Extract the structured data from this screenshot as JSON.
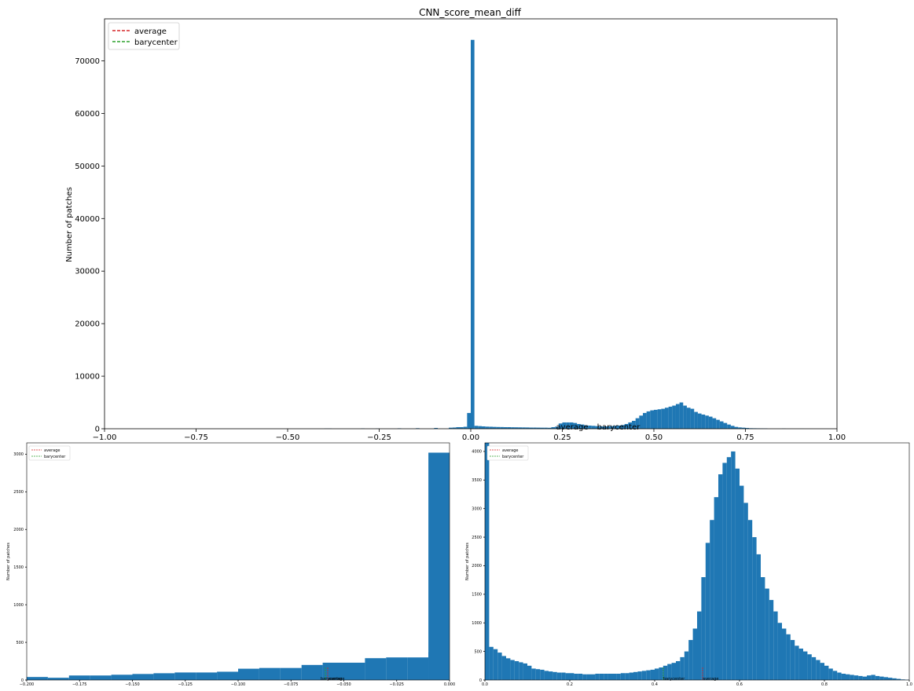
{
  "chart_data": [
    {
      "type": "bar",
      "title": "CNN_score_mean_diff",
      "ylabel": "Number of patches",
      "xlabel": "",
      "xlim": [
        -1.0,
        1.0
      ],
      "ylim": [
        0,
        78000
      ],
      "bin_width": 0.01,
      "bar_color": "#1f77b4",
      "grid": false,
      "legend_position": "top-left",
      "legend": [
        {
          "label": "average",
          "color": "#d62728",
          "style": "dashed"
        },
        {
          "label": "barycenter",
          "color": "#2ca02c",
          "style": "dashed"
        }
      ],
      "x_tick_labels": [
        "−1.00",
        "−0.75",
        "−0.50",
        "−0.25",
        "0.00",
        "0.25",
        "0.50",
        "0.75",
        "1.00"
      ],
      "y_tick_labels": [
        "0",
        "10000",
        "20000",
        "30000",
        "40000",
        "50000",
        "60000",
        "70000"
      ],
      "bins_left_edge": [
        -0.4,
        -0.39,
        -0.3,
        -0.26,
        -0.2,
        -0.15,
        -0.1,
        -0.06,
        -0.05,
        -0.04,
        -0.03,
        -0.02,
        -0.01,
        0.0,
        0.01,
        0.02,
        0.03,
        0.04,
        0.05,
        0.06,
        0.07,
        0.08,
        0.09,
        0.1,
        0.11,
        0.12,
        0.13,
        0.14,
        0.15,
        0.16,
        0.17,
        0.18,
        0.19,
        0.2,
        0.21,
        0.22,
        0.23,
        0.24,
        0.25,
        0.26,
        0.27,
        0.28,
        0.29,
        0.3,
        0.31,
        0.32,
        0.33,
        0.34,
        0.35,
        0.36,
        0.37,
        0.38,
        0.39,
        0.4,
        0.41,
        0.42,
        0.43,
        0.44,
        0.45,
        0.46,
        0.47,
        0.48,
        0.49,
        0.5,
        0.51,
        0.52,
        0.53,
        0.54,
        0.55,
        0.56,
        0.57,
        0.58,
        0.59,
        0.6,
        0.61,
        0.62,
        0.63,
        0.64,
        0.65,
        0.66,
        0.67,
        0.68,
        0.69,
        0.7,
        0.71,
        0.72,
        0.73,
        0.74,
        0.75,
        0.76,
        0.77,
        0.78,
        0.79,
        0.8,
        0.85,
        0.9
      ],
      "values": [
        40,
        40,
        50,
        40,
        80,
        100,
        150,
        200,
        230,
        300,
        300,
        370,
        3000,
        74000,
        550,
        500,
        450,
        400,
        380,
        350,
        330,
        320,
        300,
        300,
        280,
        270,
        260,
        250,
        240,
        220,
        220,
        210,
        200,
        200,
        180,
        300,
        400,
        1000,
        1200,
        1200,
        1200,
        1100,
        900,
        800,
        650,
        600,
        550,
        500,
        450,
        450,
        450,
        500,
        550,
        600,
        700,
        900,
        1200,
        1500,
        2000,
        2500,
        3000,
        3300,
        3500,
        3600,
        3700,
        3800,
        4000,
        4200,
        4400,
        4700,
        5000,
        4400,
        4000,
        3800,
        3200,
        2900,
        2700,
        2500,
        2300,
        2000,
        1700,
        1400,
        1100,
        800,
        550,
        350,
        250,
        200,
        150,
        100,
        90,
        80,
        70,
        60,
        30,
        10
      ]
    },
    {
      "type": "bar",
      "title": "",
      "ylabel": "Number of patches",
      "xlabel": "",
      "xlim": [
        -0.2,
        0.0
      ],
      "ylim": [
        0,
        3150
      ],
      "bar_color": "#1f77b4",
      "grid": false,
      "legend_position": "top-left",
      "legend": [
        {
          "label": "average",
          "color": "#d62728",
          "style": "dashed"
        },
        {
          "label": "barycenter",
          "color": "#2ca02c",
          "style": "dashed"
        }
      ],
      "annotations": [
        {
          "text": "barycenter",
          "x": -0.062,
          "color": "#2ca02c"
        },
        {
          "text": "average",
          "x": -0.06,
          "color": "#d62728"
        }
      ],
      "x_tick_labels": [
        "−0.200",
        "−0.175",
        "−0.150",
        "−0.125",
        "−0.100",
        "−0.075",
        "−0.050",
        "−0.025",
        "0.000"
      ],
      "y_tick_labels": [
        "0",
        "500",
        "1000",
        "1500",
        "2000",
        "2500",
        "3000"
      ],
      "bins_left_edge": [
        -0.2,
        -0.19,
        -0.18,
        -0.17,
        -0.16,
        -0.15,
        -0.14,
        -0.13,
        -0.12,
        -0.11,
        -0.1,
        -0.09,
        -0.08,
        -0.07,
        -0.06,
        -0.05,
        -0.04,
        -0.03,
        -0.02,
        -0.01
      ],
      "bin_width": 0.01,
      "values": [
        40,
        30,
        60,
        60,
        70,
        80,
        90,
        100,
        100,
        110,
        150,
        160,
        160,
        200,
        230,
        230,
        290,
        300,
        300,
        370
      ],
      "extra_bin": {
        "left": -0.01,
        "width": 0.01,
        "value": 3020
      }
    },
    {
      "type": "bar",
      "title": "",
      "ylabel": "Number of patches",
      "xlabel": "",
      "xlim": [
        0.0,
        1.0
      ],
      "ylim": [
        0,
        4150
      ],
      "bin_width": 0.01,
      "bar_color": "#1f77b4",
      "grid": false,
      "legend_position": "top-left",
      "legend": [
        {
          "label": "average",
          "color": "#d62728",
          "style": "dashed"
        },
        {
          "label": "barycenter",
          "color": "#2ca02c",
          "style": "dashed"
        }
      ],
      "annotations": [
        {
          "text": "barycenter",
          "x": 0.42,
          "color": "#2ca02c"
        },
        {
          "text": "average",
          "x": 0.515,
          "color": "#d62728"
        }
      ],
      "x_tick_labels": [
        "0.0",
        "0.2",
        "0.4",
        "0.6",
        "0.8",
        "1.0"
      ],
      "y_tick_labels": [
        "0",
        "500",
        "1000",
        "1500",
        "2000",
        "2500",
        "3000",
        "3500",
        "4000"
      ],
      "values": [
        4150,
        580,
        540,
        480,
        420,
        380,
        350,
        330,
        310,
        290,
        250,
        200,
        190,
        180,
        160,
        150,
        140,
        130,
        130,
        120,
        120,
        110,
        110,
        100,
        100,
        100,
        110,
        110,
        110,
        110,
        110,
        110,
        120,
        120,
        130,
        140,
        150,
        160,
        170,
        180,
        200,
        220,
        250,
        280,
        300,
        330,
        400,
        500,
        700,
        900,
        1200,
        1800,
        2400,
        2800,
        3200,
        3600,
        3800,
        3900,
        4000,
        3700,
        3400,
        3100,
        2800,
        2500,
        2200,
        1800,
        1600,
        1400,
        1200,
        1000,
        900,
        800,
        700,
        600,
        550,
        500,
        450,
        400,
        350,
        300,
        250,
        200,
        160,
        130,
        110,
        100,
        90,
        80,
        70,
        60,
        80,
        90,
        70,
        60,
        50,
        40,
        30,
        20,
        10,
        5
      ]
    }
  ],
  "banner": {
    "labels": [
      "average",
      "barycenter"
    ]
  }
}
